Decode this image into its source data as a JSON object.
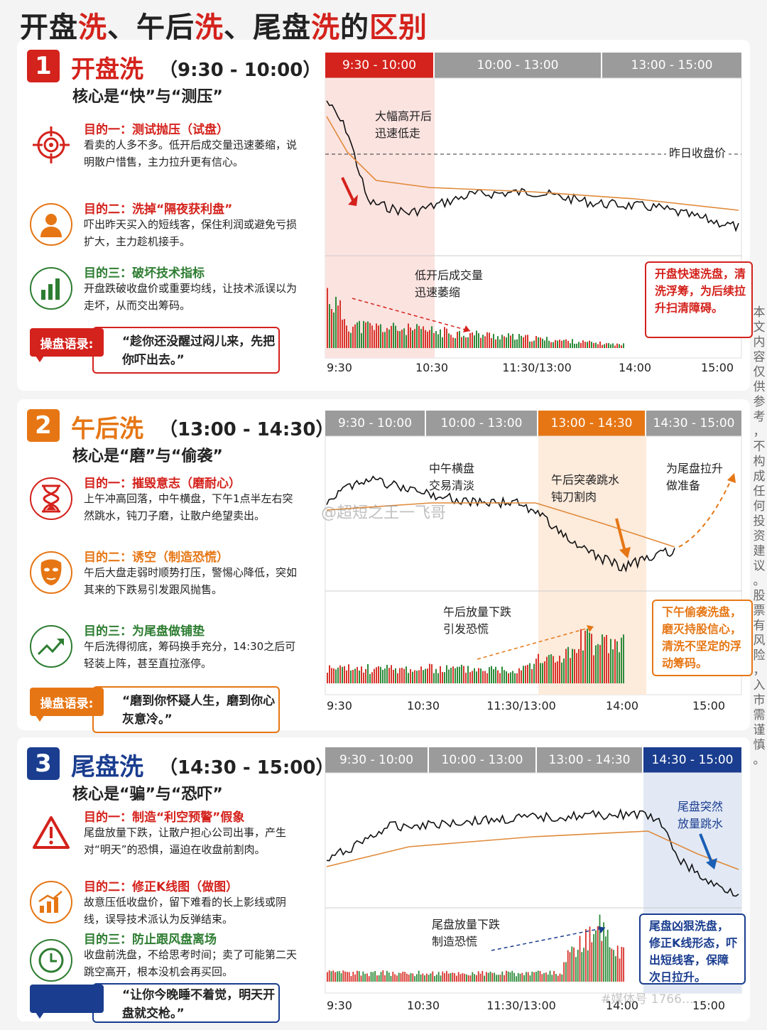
{
  "title": {
    "p1": "开盘",
    "p2": "洗",
    "p3": "、午后",
    "p4": "洗",
    "p5": "、尾盘",
    "p6": "洗",
    "p7": "的",
    "p8": "区别"
  },
  "colors": {
    "red": "#d4221c",
    "orange": "#e67614",
    "blue": "#1a3d8f",
    "green": "#2e7d32",
    "gray_tab": "#9b9b9b"
  },
  "sections": [
    {
      "num": "1",
      "name": "开盘洗",
      "time": "（9:30 - 10:00）",
      "core": "核心是“快”与“测压”",
      "goals": [
        {
          "icon": "target-icon",
          "title": "目的一：测试抛压（试盘）",
          "desc": "看卖的人多不多。低开后成交量迅速萎缩，说明散户惜售，主力拉升更有信心。"
        },
        {
          "icon": "person-icon",
          "title": "目的二：洗掉“隔夜获利盘”",
          "desc": "吓出昨天买入的短线客，保住利润或避免亏损扩大，主力趁机接手。"
        },
        {
          "icon": "bar-chart-icon",
          "title": "目的三：破坏技术指标",
          "desc": "开盘跌破收盘价或重要均线，让技术派误以为走坏，从而交出筹码。"
        }
      ],
      "quote_label": "操盘语录:",
      "quote": "“趁你还没醒过闷儿来，先把你吓出去。”",
      "tabs": [
        "9:30 - 10:00",
        "10:00 - 13:00",
        "13:00 - 15:00"
      ],
      "ann1": "大幅高开后\n迅速低走",
      "ann2": "昨日收盘价",
      "ann3": "低开后成交量\n迅速萎缩",
      "note": "开盘快速洗盘，清洗浮筹，为后续拉升扫清障碍。",
      "xlabels": [
        "9:30",
        "10:30",
        "11:30/13:00",
        "14:00",
        "15:00"
      ]
    },
    {
      "num": "2",
      "name": "午后洗",
      "time": "（13:00 - 14:30）",
      "core": "核心是“磨”与“偷袭”",
      "goals": [
        {
          "icon": "hourglass-icon",
          "title": "目的一：摧毁意志（磨耐心）",
          "desc": "上午冲高回落，中午横盘，下午1点半左右突然跳水，钝刀子磨，让散户绝望卖出。"
        },
        {
          "icon": "mask-icon",
          "title": "目的二：诱空（制造恐慌）",
          "desc": "午后大盘走弱时顺势打压，警惕心降低，突如其来的下跌易引发跟风抛售。"
        },
        {
          "icon": "trend-up-icon",
          "title": "目的三：为尾盘做铺垫",
          "desc": "午后洗得彻底，筹码换手充分，14:30之后可轻装上阵，甚至直拉涨停。"
        }
      ],
      "quote_label": "操盘语录:",
      "quote": "“磨到你怀疑人生，磨到你心灰意冷。”",
      "tabs": [
        "9:30 - 10:00",
        "10:00 - 13:00",
        "13:00 - 14:30",
        "14:30 - 15:00"
      ],
      "ann1": "中午横盘\n交易清淡",
      "ann2": "午后突袭跳水\n钝刀割肉",
      "ann3": "为尾盘拉升\n做准备",
      "ann4": "午后放量下跌\n引发恐慌",
      "note": "下午偷袭洗盘，磨灭持股信心，清洗不坚定的浮动筹码。",
      "xlabels": [
        "9:30",
        "10:30",
        "11:30/13:00",
        "14:00",
        "15:00"
      ]
    },
    {
      "num": "3",
      "name": "尾盘洗",
      "time": "（14:30 - 15:00）",
      "core": "核心是“骗”与“恐吓”",
      "goals": [
        {
          "icon": "warning-icon",
          "title": "目的一：制造“利空预警”假象",
          "desc": "尾盘放量下跌，让散户担心公司出事，产生对“明天”的恐惧，逼迫在收盘前割肉。"
        },
        {
          "icon": "growth-chart-icon",
          "title": "目的二：修正K线图（做图）",
          "desc": "故意压低收盘价，留下难看的长上影线或阴线，误导技术派认为反弹结束。"
        },
        {
          "icon": "clock-icon",
          "title": "目的三：防止跟风盘离场",
          "desc": "收盘前洗盘，不给思考时间；卖了可能第二天跳空高开，根本没机会再买回。"
        }
      ],
      "quote": "“让你今晚睡不着觉，明天开盘就交枪。”",
      "tabs": [
        "9:30 - 10:00",
        "10:00 - 13:00",
        "13:00 - 14:30",
        "14:30 - 15:00"
      ],
      "ann1": "尾盘突然\n放量跳水",
      "ann2": "尾盘放量下跌\n制造恐慌",
      "note": "尾盘凶狠洗盘，修正K线形态，吓出短线客，保障次日拉升。",
      "xlabels": [
        "9:30",
        "10:30",
        "11:30/13:00",
        "14:00",
        "15:00"
      ]
    }
  ],
  "side_note": "本文内容仅供参考，不构成任何投资建议。股票有风险，入市需谨慎。",
  "watermark": "@超短之王一飞哥",
  "watermark2": "#媒体号 1766…"
}
